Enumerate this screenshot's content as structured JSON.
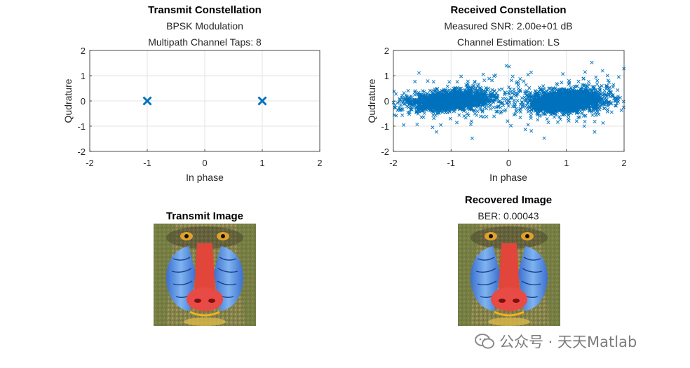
{
  "chart_data": [
    {
      "type": "scatter",
      "title": "Transmit Constellation",
      "subtitles": [
        "BPSK Modulation",
        "Multipath Channel Taps: 8"
      ],
      "xlabel": "In phase",
      "ylabel": "Qudrature",
      "xlim": [
        -2,
        2
      ],
      "ylim": [
        -2,
        2
      ],
      "xticks": [
        -2,
        -1,
        0,
        1,
        2
      ],
      "yticks": [
        -2,
        -1,
        0,
        1,
        2
      ],
      "grid": true,
      "marker": "x",
      "color": "#0072bd",
      "points": [
        [
          -1,
          0
        ],
        [
          1,
          0
        ]
      ]
    },
    {
      "type": "scatter",
      "title": "Received Constellation",
      "subtitles": [
        "Measured SNR: 2.00e+01 dB",
        "Channel Estimation: LS"
      ],
      "xlabel": "In phase",
      "ylabel": "Qudrature",
      "xlim": [
        -2,
        2
      ],
      "ylim": [
        -2,
        2
      ],
      "xticks": [
        -2,
        -1,
        0,
        1,
        2
      ],
      "yticks": [
        -2,
        -1,
        0,
        1,
        2
      ],
      "grid": true,
      "marker": "x",
      "color": "#0072bd",
      "clusters": [
        {
          "center": [
            -1,
            0
          ],
          "spread": [
            0.3,
            0.16
          ]
        },
        {
          "center": [
            1,
            0
          ],
          "spread": [
            0.3,
            0.2
          ]
        }
      ]
    }
  ],
  "images": {
    "transmit": {
      "title": "Transmit Image"
    },
    "recovered": {
      "title": "Recovered Image",
      "subtitle": "BER: 0.00043"
    }
  },
  "watermark": {
    "text": "公众号 · 天天Matlab"
  }
}
